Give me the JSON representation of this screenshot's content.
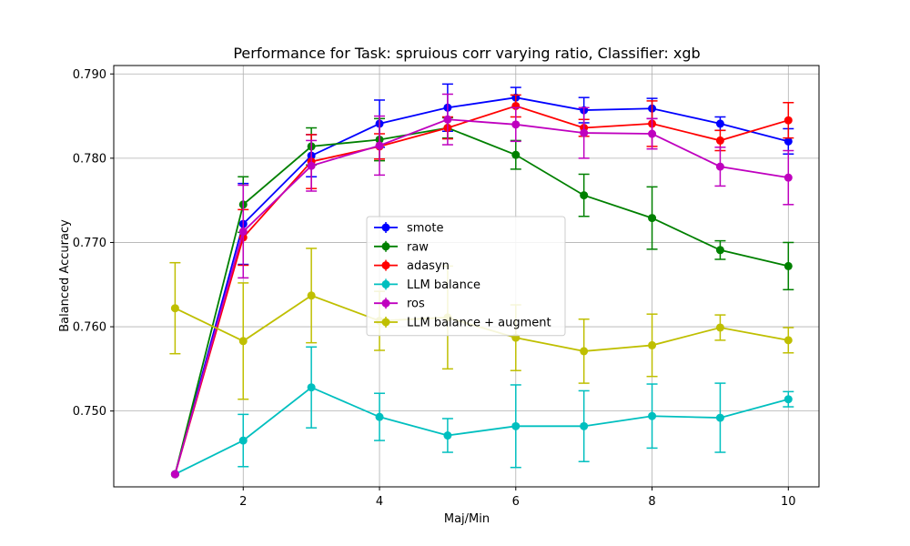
{
  "chart_data": {
    "type": "line",
    "title": "Performance for Task: spruious corr varying ratio, Classifier: xgb",
    "xlabel": "Maj/Min",
    "ylabel": "Balanced Accuracy",
    "xlim": [
      0.1,
      10.45
    ],
    "ylim": [
      0.741,
      0.791
    ],
    "xticks": [
      2,
      4,
      6,
      8,
      10
    ],
    "yticks": [
      0.75,
      0.76,
      0.77,
      0.78,
      0.79
    ],
    "ytick_labels": [
      "0.750",
      "0.760",
      "0.770",
      "0.780",
      "0.790"
    ],
    "grid": true,
    "legend_position": "center",
    "x": [
      1,
      2,
      3,
      4,
      5,
      6,
      7,
      8,
      9,
      10
    ],
    "series": [
      {
        "name": "smote",
        "color": "#0000ff",
        "values": [
          0.7425,
          0.7722,
          0.7803,
          0.7841,
          0.786,
          0.7872,
          0.7857,
          0.7859,
          0.7841,
          0.782
        ],
        "errors": [
          0.0,
          0.0048,
          0.0025,
          0.0028,
          0.0028,
          0.0012,
          0.0015,
          0.0012,
          0.0008,
          0.0015
        ]
      },
      {
        "name": "raw",
        "color": "#008000",
        "values": [
          0.7425,
          0.7745,
          0.7814,
          0.7822,
          0.7836,
          0.7804,
          0.7756,
          0.7729,
          0.7691,
          0.7672
        ],
        "errors": [
          0.0,
          0.0033,
          0.0022,
          0.0025,
          0.0012,
          0.0017,
          0.0025,
          0.0037,
          0.0011,
          0.0028
        ]
      },
      {
        "name": "adasyn",
        "color": "#ff0000",
        "values": [
          0.7425,
          0.7706,
          0.7796,
          0.7814,
          0.7836,
          0.7862,
          0.7836,
          0.7841,
          0.7821,
          0.7845
        ],
        "errors": [
          0.0,
          0.0033,
          0.0032,
          0.0015,
          0.0013,
          0.0013,
          0.001,
          0.0027,
          0.0012,
          0.0021
        ]
      },
      {
        "name": "LLM balance",
        "color": "#00bfbf",
        "values": [
          0.7425,
          0.7465,
          0.7528,
          0.7493,
          0.7471,
          0.7482,
          0.7482,
          0.7494,
          0.7492,
          0.7514
        ],
        "errors": [
          0.0,
          0.0031,
          0.0048,
          0.0028,
          0.002,
          0.0049,
          0.0042,
          0.0038,
          0.0041,
          0.0009
        ]
      },
      {
        "name": "ros",
        "color": "#bf00bf",
        "values": [
          0.7425,
          0.7713,
          0.7791,
          0.7815,
          0.7846,
          0.784,
          0.783,
          0.7829,
          0.779,
          0.7777
        ],
        "errors": [
          0.0,
          0.0055,
          0.003,
          0.0035,
          0.003,
          0.002,
          0.003,
          0.0018,
          0.0023,
          0.0032
        ]
      },
      {
        "name": "LLM balance + augment",
        "color": "#bfbf00",
        "values": [
          0.7622,
          0.7583,
          0.7637,
          0.7607,
          0.7611,
          0.7587,
          0.7571,
          0.7578,
          0.7599,
          0.7584
        ],
        "errors": [
          0.0054,
          0.0069,
          0.0056,
          0.0035,
          0.0061,
          0.0039,
          0.0038,
          0.0037,
          0.0015,
          0.0015
        ]
      }
    ]
  }
}
